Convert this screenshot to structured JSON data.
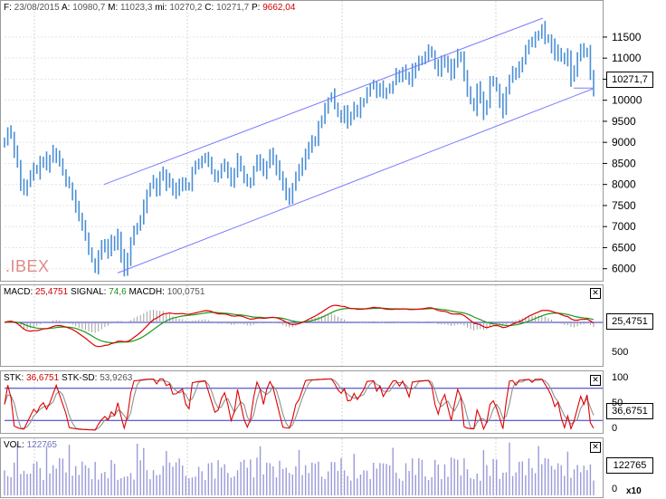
{
  "header": {
    "date_label": "F:",
    "date": "23/08/2015",
    "open_label": "A:",
    "open": "10980,7",
    "high_label": "M:",
    "high": "11023,3",
    "low_label": "mi:",
    "low": "10270,2",
    "close_label": "C:",
    "close": "10271,7",
    "prev_label": "P:",
    "prev": "9662,04"
  },
  "symbol": ".IBEX",
  "price_tag": "10271,7",
  "macd": {
    "label1": "MACD:",
    "macd": "25,4751",
    "label2": "SIGNAL:",
    "signal": "74,6",
    "label3": "MACDH:",
    "macdh": "100,0751",
    "tag": "25,4751"
  },
  "stk": {
    "label1": "STK:",
    "stk": "36,6751",
    "label2": "STK-SD:",
    "stksd": "53,9263",
    "tag": "36,6751"
  },
  "vol": {
    "label": "VOL:",
    "value": "122765",
    "tag": "122765",
    "multiplier": "x10"
  },
  "colors": {
    "bars": "#4a8fd6",
    "channel": "#7b7bff",
    "macd": "#e00000",
    "signal": "#1a9a1a",
    "hist": "#a0a0a0",
    "stk": "#e00000",
    "stksd": "#909090",
    "level": "#3030c0"
  },
  "chart_data": [
    {
      "type": "ohlc",
      "name": "price",
      "ylim": [
        5800,
        11950
      ],
      "yticks": [
        "6000",
        "6500",
        "7000",
        "7500",
        "8000",
        "8500",
        "9000",
        "9500",
        "10000",
        "10500",
        "11000",
        "11500"
      ],
      "closes": [
        9000,
        9300,
        9200,
        8800,
        8500,
        8000,
        7800,
        8000,
        8200,
        8400,
        8300,
        8500,
        8600,
        8400,
        8600,
        8800,
        8700,
        8500,
        8300,
        8100,
        8000,
        7800,
        7500,
        7200,
        7000,
        6800,
        6400,
        6200,
        6000,
        6300,
        6500,
        6600,
        6400,
        6700,
        6500,
        6800,
        6300,
        6000,
        6200,
        6600,
        6900,
        7000,
        7200,
        7500,
        7800,
        8000,
        8100,
        7900,
        8200,
        8300,
        8000,
        8100,
        7800,
        7900,
        8000,
        8100,
        7900,
        8000,
        8300,
        8400,
        8500,
        8600,
        8700,
        8500,
        8300,
        8100,
        8200,
        8400,
        8500,
        8300,
        8100,
        8300,
        8600,
        8400,
        8200,
        8000,
        8100,
        8400,
        8600,
        8500,
        8300,
        8500,
        8700,
        8600,
        8400,
        8200,
        8000,
        7800,
        7700,
        7900,
        8200,
        8300,
        8500,
        8700,
        8900,
        9000,
        9100,
        9400,
        9500,
        9800,
        10000,
        10100,
        9900,
        9700,
        9600,
        9800,
        9500,
        9600,
        9800,
        9700,
        9900,
        10000,
        10200,
        10300,
        10400,
        10200,
        10300,
        10100,
        10200,
        10300,
        10400,
        10600,
        10500,
        10700,
        10600,
        10500,
        10700,
        10800,
        10900,
        11000,
        11100,
        11200,
        11100,
        10800,
        10700,
        10900,
        11000,
        10800,
        10600,
        10900,
        11100,
        11000,
        10600,
        10200,
        10000,
        9800,
        10300,
        10100,
        9700,
        9900,
        10400,
        10500,
        10300,
        10000,
        9700,
        10200,
        10500,
        10700,
        10600,
        10800,
        10900,
        11200,
        11400,
        11300,
        11500,
        11600,
        11700,
        11500,
        11400,
        11300,
        11100,
        11200,
        11000,
        10900,
        11100,
        10500,
        10700,
        11000,
        11300,
        11100,
        11200,
        10600,
        10272
      ],
      "channel": {
        "upper": [
          [
            115,
            8000
          ],
          [
            600,
            11950
          ]
        ],
        "lower": [
          [
            130,
            5900
          ],
          [
            655,
            10270
          ]
        ]
      }
    },
    {
      "type": "line",
      "name": "MACD",
      "series": [
        {
          "name": "MACD",
          "last": 25.4751
        },
        {
          "name": "SIGNAL",
          "last": 74.6
        },
        {
          "name": "MACDH",
          "last": 100.0751
        }
      ],
      "yticks": [
        "500"
      ]
    },
    {
      "type": "line",
      "name": "STK",
      "series": [
        {
          "name": "STK",
          "last": 36.6751
        },
        {
          "name": "STK-SD",
          "last": 53.9263
        }
      ],
      "ylim": [
        0,
        100
      ],
      "yticks": [
        "100",
        "50",
        "0"
      ],
      "levels": [
        80,
        20
      ]
    },
    {
      "type": "bar",
      "name": "VOL",
      "last": 122765,
      "yticks": [
        "0"
      ],
      "multiplier": "x10"
    }
  ]
}
